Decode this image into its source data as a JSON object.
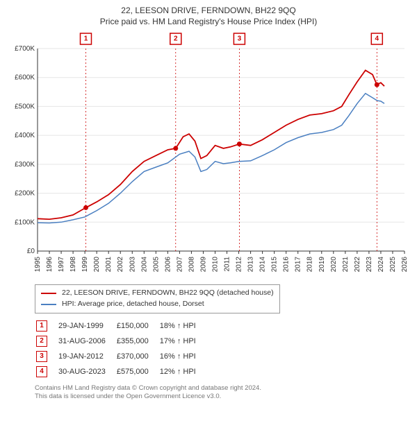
{
  "header": {
    "title": "22, LEESON DRIVE, FERNDOWN, BH22 9QQ",
    "subtitle": "Price paid vs. HM Land Registry's House Price Index (HPI)"
  },
  "chart": {
    "type": "line",
    "background_color": "#ffffff",
    "grid_color": "#e5e5e5",
    "axis_color": "#333333",
    "label_fontsize": 10,
    "xlim": [
      1995,
      2026
    ],
    "ylim": [
      0,
      700000
    ],
    "ytick_step": 100000,
    "ytick_labels": [
      "£0",
      "£100K",
      "£200K",
      "£300K",
      "£400K",
      "£500K",
      "£600K",
      "£700K"
    ],
    "xtick_step": 1,
    "xticks": [
      1995,
      1996,
      1997,
      1998,
      1999,
      2000,
      2001,
      2002,
      2003,
      2004,
      2005,
      2006,
      2007,
      2008,
      2009,
      2010,
      2011,
      2012,
      2013,
      2014,
      2015,
      2016,
      2017,
      2018,
      2019,
      2020,
      2021,
      2022,
      2023,
      2024,
      2025,
      2026
    ],
    "series": {
      "price_paid": {
        "label": "22, LEESON DRIVE, FERNDOWN, BH22 9QQ (detached house)",
        "color": "#cc0000",
        "line_width": 1.8,
        "points": [
          [
            1995.0,
            112000
          ],
          [
            1996.0,
            110000
          ],
          [
            1997.0,
            115000
          ],
          [
            1998.0,
            125000
          ],
          [
            1999.08,
            150000
          ],
          [
            2000.0,
            170000
          ],
          [
            2001.0,
            195000
          ],
          [
            2002.0,
            230000
          ],
          [
            2003.0,
            275000
          ],
          [
            2004.0,
            310000
          ],
          [
            2005.0,
            330000
          ],
          [
            2006.0,
            350000
          ],
          [
            2006.67,
            355000
          ],
          [
            2007.3,
            395000
          ],
          [
            2007.8,
            405000
          ],
          [
            2008.3,
            380000
          ],
          [
            2008.8,
            320000
          ],
          [
            2009.3,
            330000
          ],
          [
            2010.0,
            365000
          ],
          [
            2010.7,
            355000
          ],
          [
            2011.3,
            360000
          ],
          [
            2012.05,
            370000
          ],
          [
            2013.0,
            365000
          ],
          [
            2014.0,
            385000
          ],
          [
            2015.0,
            410000
          ],
          [
            2016.0,
            435000
          ],
          [
            2017.0,
            455000
          ],
          [
            2018.0,
            470000
          ],
          [
            2019.0,
            475000
          ],
          [
            2020.0,
            485000
          ],
          [
            2020.7,
            500000
          ],
          [
            2021.3,
            540000
          ],
          [
            2022.0,
            585000
          ],
          [
            2022.7,
            625000
          ],
          [
            2023.3,
            610000
          ],
          [
            2023.67,
            575000
          ],
          [
            2024.0,
            582000
          ],
          [
            2024.3,
            570000
          ]
        ]
      },
      "hpi": {
        "label": "HPI: Average price, detached house, Dorset",
        "color": "#4a7fc1",
        "line_width": 1.5,
        "points": [
          [
            1995.0,
            98000
          ],
          [
            1996.0,
            97000
          ],
          [
            1997.0,
            100000
          ],
          [
            1998.0,
            108000
          ],
          [
            1999.0,
            118000
          ],
          [
            2000.0,
            140000
          ],
          [
            2001.0,
            165000
          ],
          [
            2002.0,
            200000
          ],
          [
            2003.0,
            240000
          ],
          [
            2004.0,
            275000
          ],
          [
            2005.0,
            290000
          ],
          [
            2006.0,
            305000
          ],
          [
            2007.0,
            335000
          ],
          [
            2007.8,
            345000
          ],
          [
            2008.3,
            325000
          ],
          [
            2008.8,
            275000
          ],
          [
            2009.3,
            282000
          ],
          [
            2010.0,
            310000
          ],
          [
            2010.7,
            302000
          ],
          [
            2011.3,
            305000
          ],
          [
            2012.0,
            310000
          ],
          [
            2013.0,
            312000
          ],
          [
            2014.0,
            330000
          ],
          [
            2015.0,
            350000
          ],
          [
            2016.0,
            375000
          ],
          [
            2017.0,
            392000
          ],
          [
            2018.0,
            405000
          ],
          [
            2019.0,
            410000
          ],
          [
            2020.0,
            420000
          ],
          [
            2020.7,
            435000
          ],
          [
            2021.3,
            468000
          ],
          [
            2022.0,
            510000
          ],
          [
            2022.7,
            545000
          ],
          [
            2023.3,
            530000
          ],
          [
            2023.7,
            520000
          ],
          [
            2024.0,
            518000
          ],
          [
            2024.3,
            510000
          ]
        ]
      }
    },
    "sale_markers": [
      {
        "n": "1",
        "year": 1999.08,
        "price": 150000
      },
      {
        "n": "2",
        "year": 2006.67,
        "price": 355000
      },
      {
        "n": "3",
        "year": 2012.05,
        "price": 370000
      },
      {
        "n": "4",
        "year": 2023.67,
        "price": 575000
      }
    ],
    "marker_line_color": "#cc0000",
    "marker_dot_color": "#cc0000"
  },
  "legend": {
    "items": [
      {
        "color": "#cc0000",
        "label": "22, LEESON DRIVE, FERNDOWN, BH22 9QQ (detached house)"
      },
      {
        "color": "#4a7fc1",
        "label": "HPI: Average price, detached house, Dorset"
      }
    ]
  },
  "sales_table": {
    "up_arrow": "↑",
    "hpi_suffix": " HPI",
    "rows": [
      {
        "n": "1",
        "date": "29-JAN-1999",
        "price": "£150,000",
        "pct": "18%"
      },
      {
        "n": "2",
        "date": "31-AUG-2006",
        "price": "£355,000",
        "pct": "17%"
      },
      {
        "n": "3",
        "date": "19-JAN-2012",
        "price": "£370,000",
        "pct": "16%"
      },
      {
        "n": "4",
        "date": "30-AUG-2023",
        "price": "£575,000",
        "pct": "12%"
      }
    ]
  },
  "footer": {
    "line1": "Contains HM Land Registry data © Crown copyright and database right 2024.",
    "line2": "This data is licensed under the Open Government Licence v3.0."
  }
}
